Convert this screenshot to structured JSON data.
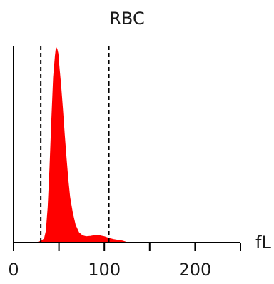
{
  "chart_data": {
    "type": "histogram",
    "title": "RBC",
    "xlabel": "fL",
    "ylabel": "",
    "xlim": [
      0,
      250
    ],
    "xticks": [
      0,
      100,
      200
    ],
    "xtick_labels": [
      "0",
      "100",
      "200"
    ],
    "ylim": [
      0,
      1
    ],
    "grid": false,
    "legend": "none",
    "colors": {
      "fill": "#ff0000",
      "axis": "#000000",
      "marker_line": "#000000"
    },
    "marker_lines": [
      30,
      105
    ],
    "series": [
      {
        "x": [
          25,
          30,
          34,
          36,
          38,
          40,
          42,
          44,
          46,
          47,
          48,
          49,
          50,
          52,
          54,
          56,
          58,
          60,
          62,
          65,
          68,
          72,
          76,
          80,
          85,
          90,
          95,
          100,
          105,
          110,
          115,
          120,
          123,
          124
        ],
        "values": [
          0,
          0.006,
          0.02,
          0.06,
          0.18,
          0.38,
          0.62,
          0.84,
          0.95,
          0.99,
          0.98,
          0.96,
          0.9,
          0.8,
          0.68,
          0.55,
          0.43,
          0.32,
          0.23,
          0.15,
          0.09,
          0.05,
          0.035,
          0.03,
          0.032,
          0.036,
          0.035,
          0.03,
          0.022,
          0.016,
          0.012,
          0.008,
          0.004,
          0
        ]
      }
    ]
  }
}
